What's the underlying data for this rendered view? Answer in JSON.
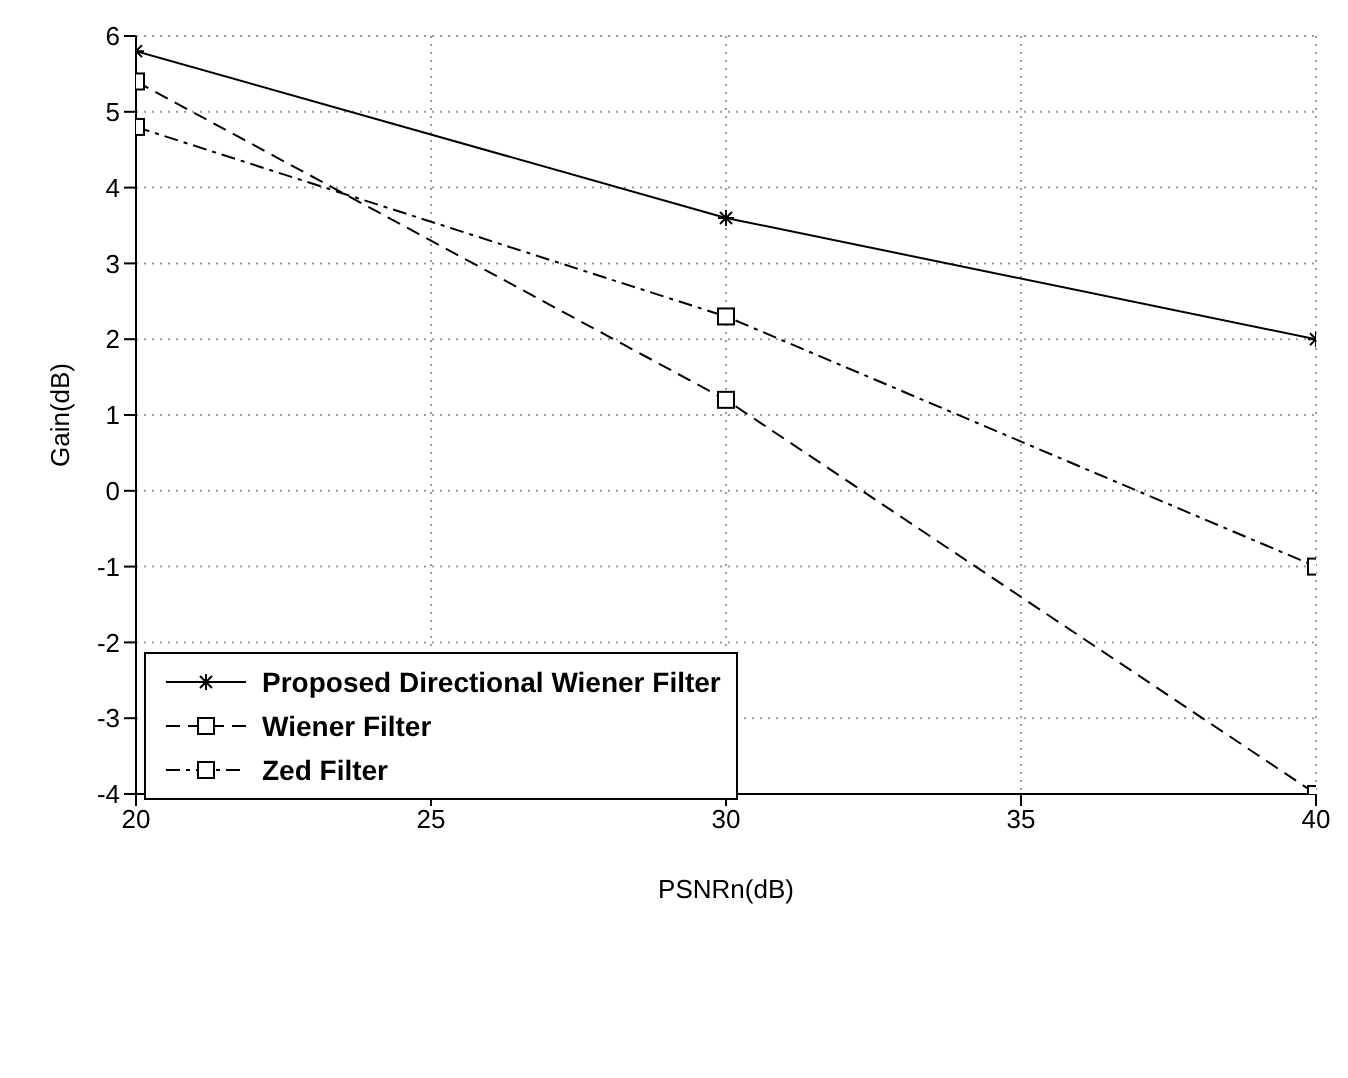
{
  "chart_data": {
    "type": "line",
    "xlabel": "PSNRn(dB)",
    "ylabel": "Gain(dB)",
    "x": [
      20,
      30,
      40
    ],
    "series": [
      {
        "name": "Proposed Directional Wiener Filter",
        "color": "#000000",
        "values": [
          5.8,
          3.6,
          2.0
        ],
        "marker": "cross",
        "line_style": "solid"
      },
      {
        "name": "Wiener Filter",
        "color": "#000000",
        "values": [
          5.4,
          1.2,
          -4
        ],
        "marker": "square",
        "line_style": "dashed"
      },
      {
        "name": "Zed Filter",
        "color": "#000000",
        "values": [
          4.8,
          2.3,
          -1
        ],
        "marker": "square",
        "line_style": "dotted"
      }
    ],
    "xlim": [
      20,
      40
    ],
    "xticks": [
      20,
      25,
      30,
      35,
      40
    ],
    "ylim": [
      -4,
      6
    ],
    "yticks": [
      -4,
      -3,
      -2,
      -1,
      0,
      1,
      2,
      3,
      4,
      5,
      6
    ],
    "grid": true,
    "legend": "bottom left"
  }
}
